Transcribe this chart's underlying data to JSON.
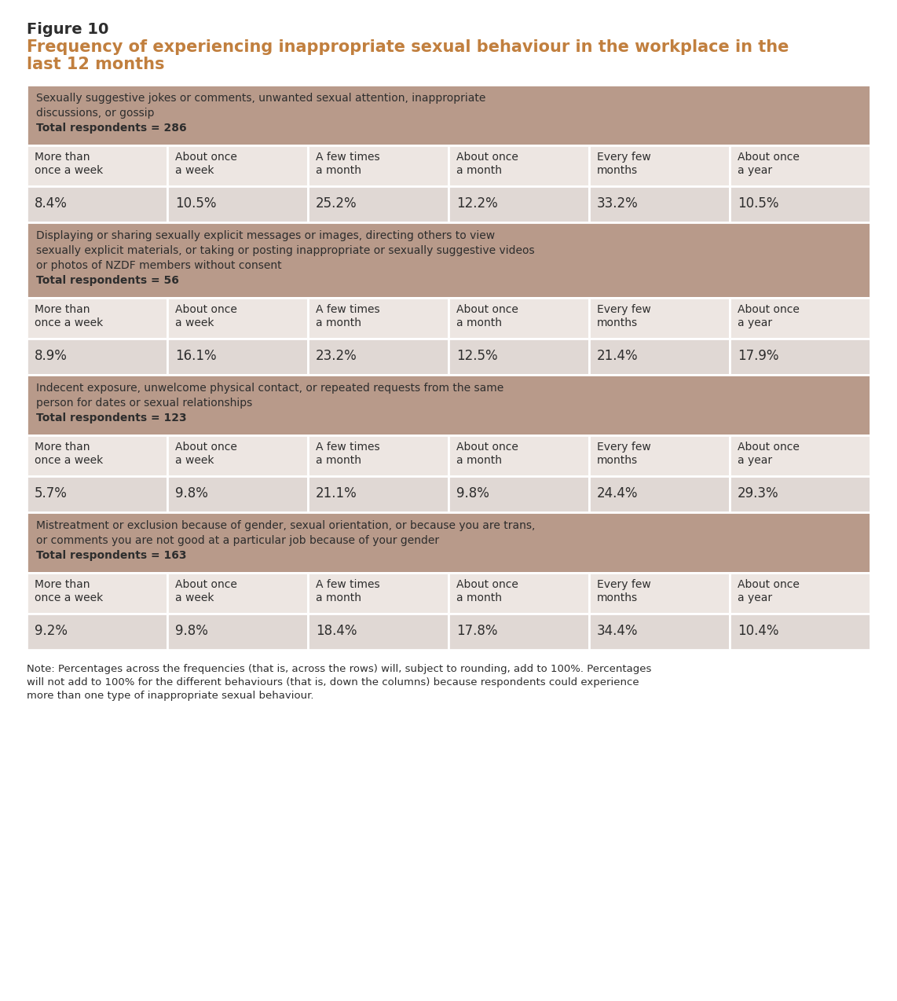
{
  "figure_label": "Figure 10",
  "title_line1": "Frequency of experiencing inappropriate sexual behaviour in the workplace in the",
  "title_line2": "last 12 months",
  "figure_label_color": "#2d2d2d",
  "title_color": "#c17f3e",
  "background_color": "#ffffff",
  "header_bg_color": "#b89a8a",
  "row_bg_col_header": "#ede6e2",
  "row_bg_value": "#e0d8d4",
  "text_color": "#2d2d2d",
  "border_color": "#ffffff",
  "col_headers": [
    "More than\nonce a week",
    "About once\na week",
    "A few times\na month",
    "About once\na month",
    "Every few\nmonths",
    "About once\na year"
  ],
  "sections": [
    {
      "header_lines": [
        "Sexually suggestive jokes or comments, unwanted sexual attention, inappropriate",
        "discussions, or gossip",
        "Total respondents = 286"
      ],
      "bold_index": 2,
      "values": [
        "8.4%",
        "10.5%",
        "25.2%",
        "12.2%",
        "33.2%",
        "10.5%"
      ]
    },
    {
      "header_lines": [
        "Displaying or sharing sexually explicit messages or images, directing others to view",
        "sexually explicit materials, or taking or posting inappropriate or sexually suggestive videos",
        "or photos of NZDF members without consent",
        "Total respondents = 56"
      ],
      "bold_index": 3,
      "values": [
        "8.9%",
        "16.1%",
        "23.2%",
        "12.5%",
        "21.4%",
        "17.9%"
      ]
    },
    {
      "header_lines": [
        "Indecent exposure, unwelcome physical contact, or repeated requests from the same",
        "person for dates or sexual relationships",
        "Total respondents = 123"
      ],
      "bold_index": 2,
      "values": [
        "5.7%",
        "9.8%",
        "21.1%",
        "9.8%",
        "24.4%",
        "29.3%"
      ]
    },
    {
      "header_lines": [
        "Mistreatment or exclusion because of gender, sexual orientation, or because you are trans,",
        "or comments you are not good at a particular job because of your gender",
        "Total respondents = 163"
      ],
      "bold_index": 2,
      "values": [
        "9.2%",
        "9.8%",
        "18.4%",
        "17.8%",
        "34.4%",
        "10.4%"
      ]
    }
  ],
  "note_lines": [
    "Note: Percentages across the frequencies (that is, across the rows) will, subject to rounding, add to 100%. Percentages",
    "will not add to 100% for the different behaviours (that is, down the columns) because respondents could experience",
    "more than one type of inappropriate sexual behaviour."
  ]
}
